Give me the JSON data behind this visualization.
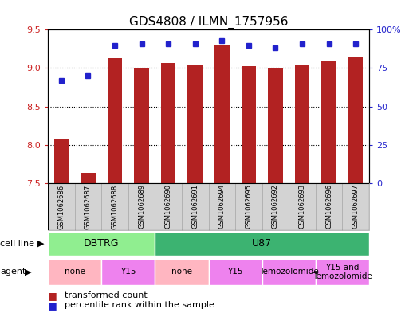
{
  "title": "GDS4808 / ILMN_1757956",
  "samples": [
    "GSM1062686",
    "GSM1062687",
    "GSM1062688",
    "GSM1062689",
    "GSM1062690",
    "GSM1062691",
    "GSM1062694",
    "GSM1062695",
    "GSM1062692",
    "GSM1062693",
    "GSM1062696",
    "GSM1062697"
  ],
  "bar_values": [
    8.07,
    7.63,
    9.13,
    9.01,
    9.07,
    9.05,
    9.31,
    9.03,
    8.99,
    9.05,
    9.1,
    9.15
  ],
  "dot_values": [
    67,
    70,
    90,
    91,
    91,
    91,
    93,
    90,
    88,
    91,
    91,
    91
  ],
  "bar_color": "#b22222",
  "dot_color": "#2222cc",
  "ylim_left": [
    7.5,
    9.5
  ],
  "ylim_right": [
    0,
    100
  ],
  "yticks_left": [
    7.5,
    8.0,
    8.5,
    9.0,
    9.5
  ],
  "yticks_right": [
    0,
    25,
    50,
    75,
    100
  ],
  "ytick_labels_right": [
    "0",
    "25",
    "50",
    "75",
    "100%"
  ],
  "cell_line_groups": [
    {
      "label": "DBTRG",
      "start": 0,
      "end": 4,
      "color": "#90EE90"
    },
    {
      "label": "U87",
      "start": 4,
      "end": 12,
      "color": "#3CB371"
    }
  ],
  "agent_groups": [
    {
      "label": "none",
      "start": 0,
      "end": 2,
      "color": "#FFB6C1"
    },
    {
      "label": "Y15",
      "start": 2,
      "end": 4,
      "color": "#EE82EE"
    },
    {
      "label": "none",
      "start": 4,
      "end": 6,
      "color": "#FFB6C1"
    },
    {
      "label": "Y15",
      "start": 6,
      "end": 8,
      "color": "#EE82EE"
    },
    {
      "label": "Temozolomide",
      "start": 8,
      "end": 10,
      "color": "#EE82EE"
    },
    {
      "label": "Y15 and\nTemozolomide",
      "start": 10,
      "end": 12,
      "color": "#EE82EE"
    }
  ],
  "legend_items": [
    {
      "label": "transformed count",
      "color": "#b22222"
    },
    {
      "label": "percentile rank within the sample",
      "color": "#2222cc"
    }
  ],
  "background_color": "#ffffff",
  "tick_color_left": "#cc2222",
  "tick_color_right": "#2222cc",
  "label_box_color": "#d3d3d3",
  "label_box_edge": "#aaaaaa"
}
